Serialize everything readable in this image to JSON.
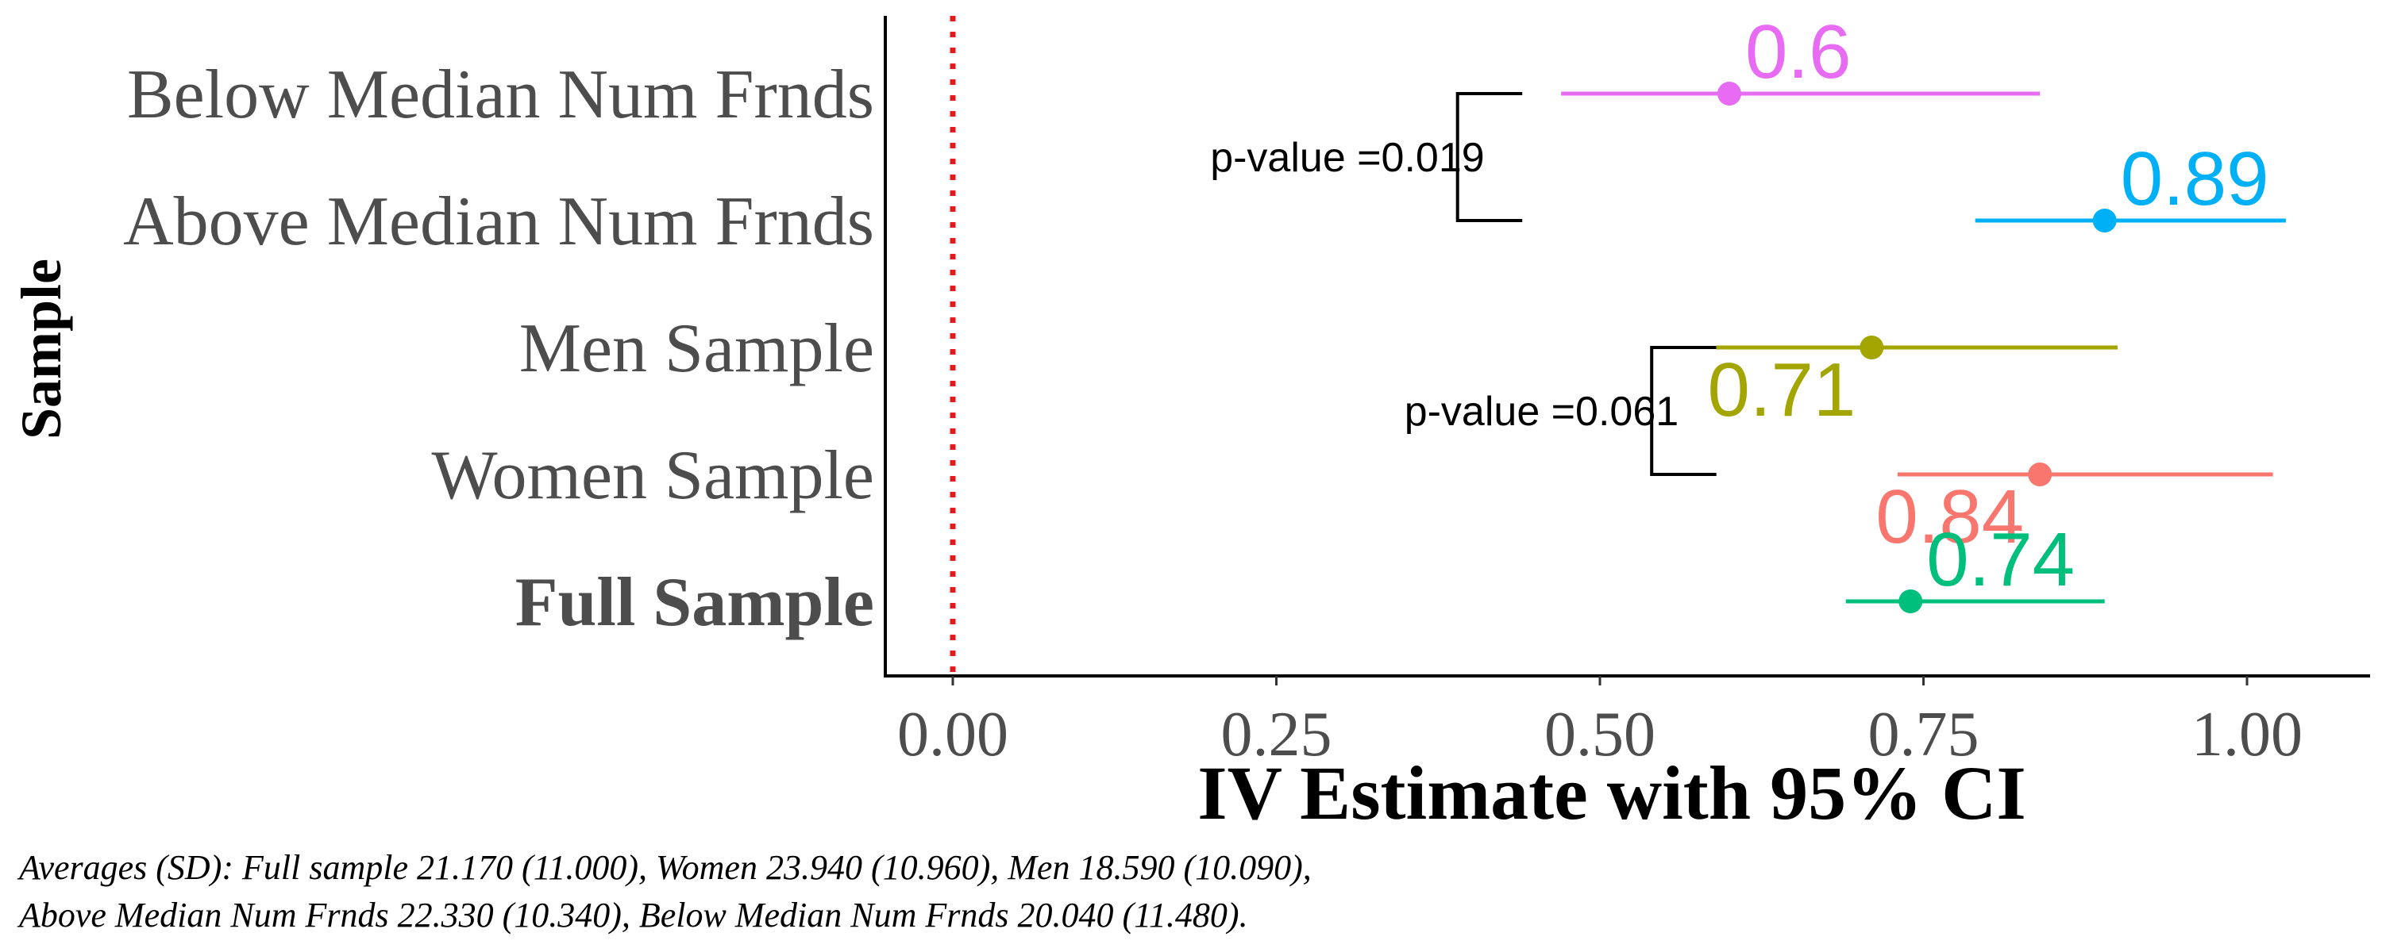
{
  "chart_data": {
    "type": "scatter",
    "subtype": "forest-plot-with-error-bars",
    "xlabel": "IV Estimate with 95% CI",
    "ylabel": "Sample",
    "xlim": [
      0,
      1.0
    ],
    "x_ticks": [
      0.0,
      0.25,
      0.5,
      0.75,
      1.0
    ],
    "x_tick_labels": [
      "0.00",
      "0.25",
      "0.50",
      "0.75",
      "1.00"
    ],
    "reference_line": {
      "x": 0,
      "style": "dotted",
      "color": "#e41a1c"
    },
    "grid": false,
    "legend": "none",
    "rows": [
      {
        "label": "Below Median Num Frnds",
        "estimate": 0.6,
        "ci": [
          0.47,
          0.84
        ],
        "value_label": "0.6",
        "label_position": "above-right",
        "color": "#e76bf3",
        "bold": false
      },
      {
        "label": "Above Median Num Frnds",
        "estimate": 0.89,
        "ci": [
          0.79,
          1.03
        ],
        "value_label": "0.89",
        "label_position": "above-right",
        "color": "#00b0f6",
        "bold": false
      },
      {
        "label": "Men Sample",
        "estimate": 0.71,
        "ci": [
          0.59,
          0.9
        ],
        "value_label": "0.71",
        "label_position": "below-left",
        "color": "#a3a500",
        "bold": false
      },
      {
        "label": "Women Sample",
        "estimate": 0.84,
        "ci": [
          0.73,
          1.02
        ],
        "value_label": "0.84",
        "label_position": "below-left",
        "color": "#f8766d",
        "bold": false
      },
      {
        "label": "Full Sample",
        "estimate": 0.74,
        "ci": [
          0.69,
          0.89
        ],
        "value_label": "0.74",
        "label_position": "above-right",
        "color": "#00bf7d",
        "bold": true
      }
    ],
    "comparisons": [
      {
        "text": "p-value =0.019",
        "rows": [
          0,
          1
        ],
        "bracket_x": 0.39,
        "tip_x": 0.44
      },
      {
        "text": "p-value =0.061",
        "rows": [
          2,
          3
        ],
        "bracket_x": 0.54,
        "tip_x": 0.59
      }
    ]
  },
  "note": {
    "line1": "Averages (SD): Full sample 21.170 (11.000), Women 23.940 (10.960), Men 18.590 (10.090),",
    "line2": "Above Median Num Frnds 22.330 (10.340), Below Median Num Frnds 20.040 (11.480)."
  }
}
